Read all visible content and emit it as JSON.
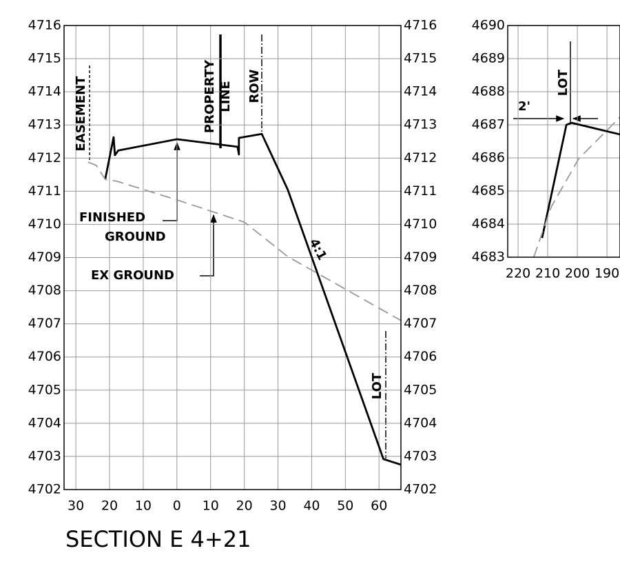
{
  "chart_data": [
    {
      "type": "line",
      "title": "SECTION E 4+21",
      "xlim": [
        -33.5,
        66.5
      ],
      "xticks": [
        {
          "value": -30,
          "label": "30"
        },
        {
          "value": -20,
          "label": "20"
        },
        {
          "value": -10,
          "label": "10"
        },
        0,
        10,
        20,
        30,
        40,
        50,
        60
      ],
      "ylim": [
        4702,
        4716
      ],
      "yticks": [
        4702,
        4703,
        4704,
        4705,
        4706,
        4707,
        4708,
        4709,
        4710,
        4711,
        4712,
        4713,
        4714,
        4715,
        4716
      ],
      "y2lim": [
        4702,
        4716
      ],
      "y2ticks": [
        4702,
        4703,
        4704,
        4705,
        4706,
        4707,
        4708,
        4709,
        4710,
        4711,
        4712,
        4713,
        4714,
        4715,
        4716
      ],
      "grid": true,
      "annotations": [
        "EASEMENT",
        "PROPERTY",
        "LINE",
        "ROW",
        "FINISHED",
        "GROUND",
        "EX GROUND",
        "4:1",
        "LOT"
      ],
      "series": [
        {
          "name": "FINISHED GROUND",
          "color": "#000000",
          "line_style": "solid",
          "x": [
            -21.3,
            -18.8,
            -18.4,
            -17.4,
            0,
            18.0,
            18.4,
            18.4,
            25.2,
            32.9,
            61.3,
            66.5
          ],
          "values": [
            4711.36,
            4712.63,
            4712.09,
            4712.23,
            4712.57,
            4712.34,
            4712.11,
            4712.61,
            4712.73,
            4711.05,
            4702.92,
            4702.75
          ]
        },
        {
          "name": "EX GROUND",
          "color": "#999999",
          "line_style": "dashed",
          "x": [
            -26.4,
            -23.9,
            -21.3,
            -17.8,
            0,
            20,
            32.9,
            66.5
          ],
          "values": [
            4711.88,
            4711.78,
            4711.36,
            4711.3,
            4710.74,
            4710.07,
            4709.03,
            4707.1
          ]
        }
      ]
    },
    {
      "type": "line",
      "xlim": [
        223.5,
        185.6
      ],
      "xticks": [
        220,
        210,
        200,
        190
      ],
      "ylim": [
        4683,
        4690
      ],
      "yticks": [
        4683,
        4684,
        4685,
        4686,
        4687,
        4688,
        4689,
        4690
      ],
      "grid": true,
      "annotations": [
        "LOT",
        "2'"
      ],
      "series": [
        {
          "name": "FINISHED GROUND",
          "color": "#000000",
          "line_style": "solid",
          "x": [
            211.9,
            203.7,
            201.9,
            185.6
          ],
          "values": [
            4683.58,
            4687.0,
            4687.06,
            4686.71
          ]
        },
        {
          "name": "EX GROUND",
          "color": "#999999",
          "line_style": "dashed",
          "x": [
            214.7,
            208.8,
            199.5,
            185.6
          ],
          "values": [
            4683,
            4684.52,
            4685.98,
            4687.23
          ]
        }
      ]
    }
  ]
}
